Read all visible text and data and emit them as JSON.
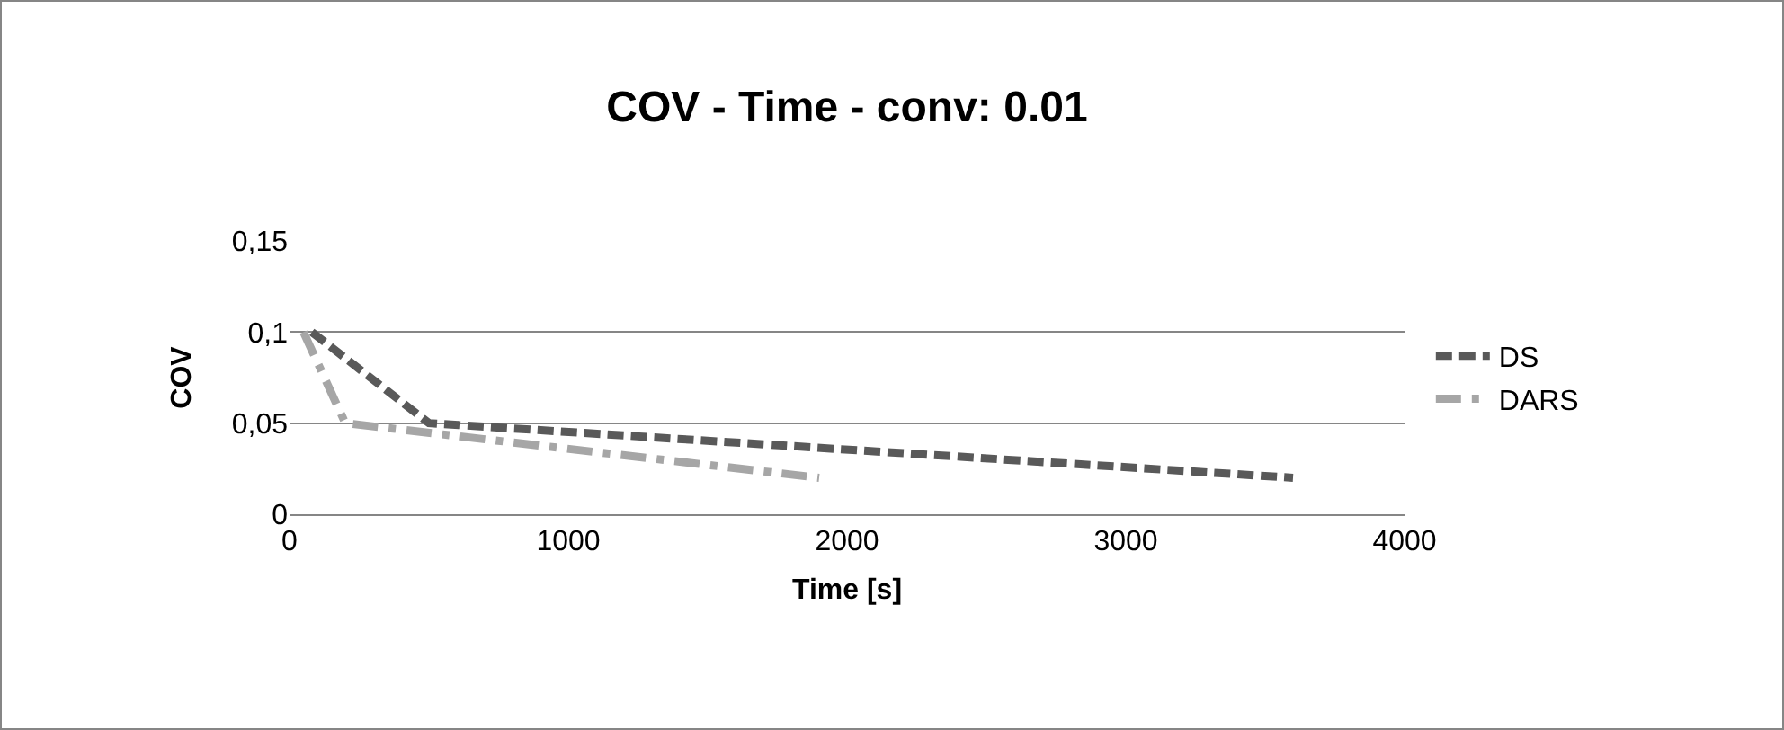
{
  "chart_data": {
    "type": "line",
    "title": "COV - Time - conv: 0.01",
    "xlabel": "Time [s]",
    "ylabel": "COV",
    "xlim": [
      0,
      4000
    ],
    "xticks": [
      0,
      1000,
      2000,
      3000,
      4000
    ],
    "ylim": [
      0,
      0.15
    ],
    "yticks": [
      {
        "value": 0,
        "label": "0"
      },
      {
        "value": 0.05,
        "label": "0,05"
      },
      {
        "value": 0.1,
        "label": "0,1"
      },
      {
        "value": 0.15,
        "label": "0,15"
      }
    ],
    "grid": "y",
    "legend": "right",
    "marker": "none",
    "series": [
      {
        "name": "DS",
        "color": "#595959",
        "line_style": "dashed",
        "x": [
          80,
          500,
          3600
        ],
        "values": [
          0.1,
          0.05,
          0.02
        ]
      },
      {
        "name": "DARS",
        "color": "#a6a6a6",
        "line_style": "dashdot",
        "x": [
          50,
          200,
          1900
        ],
        "values": [
          0.1,
          0.05,
          0.02
        ]
      }
    ]
  }
}
